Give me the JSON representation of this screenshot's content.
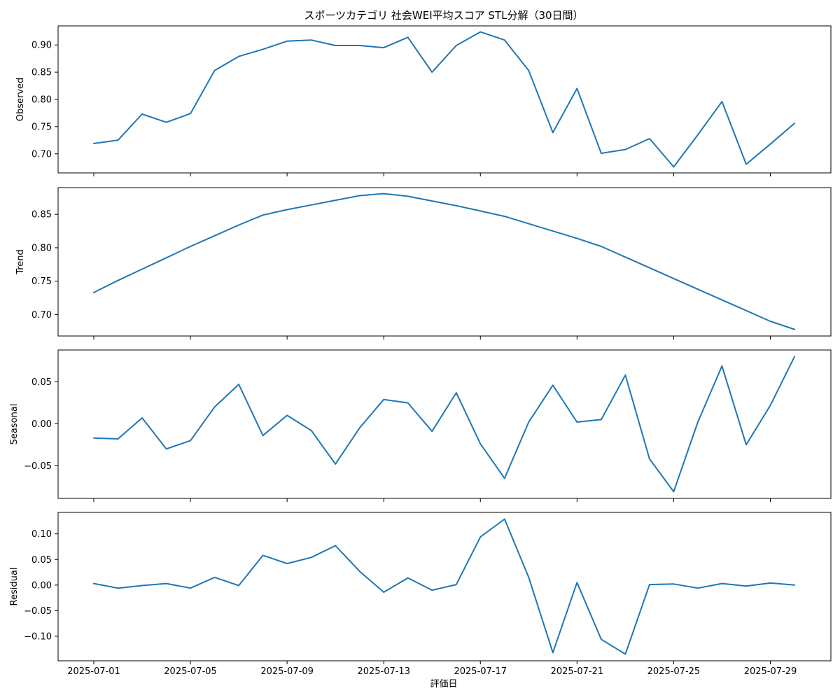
{
  "title": "スポーツカテゴリ 社会WEI平均スコア STL分解（30日間）",
  "xlabel": "評価日",
  "line_color": "#1f77b4",
  "chart_data": {
    "type": "line",
    "title": "スポーツカテゴリ 社会WEI平均スコア STL分解（30日間）",
    "xlabel": "評価日",
    "x": [
      "2025-07-01",
      "2025-07-02",
      "2025-07-03",
      "2025-07-04",
      "2025-07-05",
      "2025-07-06",
      "2025-07-07",
      "2025-07-08",
      "2025-07-09",
      "2025-07-10",
      "2025-07-11",
      "2025-07-12",
      "2025-07-13",
      "2025-07-14",
      "2025-07-15",
      "2025-07-16",
      "2025-07-17",
      "2025-07-18",
      "2025-07-19",
      "2025-07-20",
      "2025-07-21",
      "2025-07-22",
      "2025-07-23",
      "2025-07-24",
      "2025-07-25",
      "2025-07-26",
      "2025-07-27",
      "2025-07-28",
      "2025-07-29",
      "2025-07-30"
    ],
    "xticks": [
      "2025-07-01",
      "2025-07-05",
      "2025-07-09",
      "2025-07-13",
      "2025-07-17",
      "2025-07-21",
      "2025-07-25",
      "2025-07-29"
    ],
    "panels": [
      {
        "name": "observed",
        "ylabel": "Observed",
        "ylim": [
          0.665,
          0.935
        ],
        "yticks": [
          0.7,
          0.75,
          0.8,
          0.85,
          0.9
        ],
        "ytick_labels": [
          "0.70",
          "0.75",
          "0.80",
          "0.85",
          "0.90"
        ],
        "values": [
          0.719,
          0.725,
          0.773,
          0.758,
          0.774,
          0.853,
          0.879,
          0.892,
          0.907,
          0.909,
          0.899,
          0.899,
          0.895,
          0.914,
          0.85,
          0.899,
          0.924,
          0.909,
          0.853,
          0.739,
          0.82,
          0.701,
          0.708,
          0.728,
          0.676,
          0.735,
          0.796,
          0.681,
          0.718,
          0.756
        ]
      },
      {
        "name": "trend",
        "ylabel": "Trend",
        "ylim": [
          0.668,
          0.89
        ],
        "yticks": [
          0.7,
          0.75,
          0.8,
          0.85
        ],
        "ytick_labels": [
          "0.70",
          "0.75",
          "0.80",
          "0.85"
        ],
        "values": [
          0.733,
          0.751,
          0.768,
          0.785,
          0.802,
          0.818,
          0.834,
          0.849,
          0.857,
          0.864,
          0.871,
          0.878,
          0.881,
          0.877,
          0.87,
          0.863,
          0.855,
          0.847,
          0.836,
          0.825,
          0.814,
          0.802,
          0.786,
          0.77,
          0.754,
          0.738,
          0.722,
          0.706,
          0.69,
          0.678
        ]
      },
      {
        "name": "seasonal",
        "ylabel": "Seasonal",
        "ylim": [
          -0.089,
          0.088
        ],
        "yticks": [
          -0.05,
          0.0,
          0.05
        ],
        "ytick_labels": [
          "−0.05",
          "0.00",
          "0.05"
        ],
        "values": [
          -0.017,
          -0.018,
          0.007,
          -0.03,
          -0.02,
          0.02,
          0.047,
          -0.014,
          0.01,
          -0.008,
          -0.048,
          -0.005,
          0.029,
          0.025,
          -0.009,
          0.037,
          -0.024,
          -0.065,
          0.002,
          0.046,
          0.002,
          0.005,
          0.058,
          -0.042,
          -0.081,
          0.002,
          0.069,
          -0.025,
          0.022,
          0.08
        ]
      },
      {
        "name": "residual",
        "ylabel": "Residual",
        "ylim": [
          -0.148,
          0.142
        ],
        "yticks": [
          -0.1,
          -0.05,
          0.0,
          0.05,
          0.1
        ],
        "ytick_labels": [
          "−0.10",
          "−0.05",
          "0.00",
          "0.05",
          "0.10"
        ],
        "values": [
          0.003,
          -0.006,
          -0.001,
          0.003,
          -0.006,
          0.015,
          -0.001,
          0.058,
          0.042,
          0.054,
          0.077,
          0.027,
          -0.014,
          0.014,
          -0.01,
          0.001,
          0.094,
          0.129,
          0.015,
          -0.132,
          0.005,
          -0.106,
          -0.135,
          0.001,
          0.002,
          -0.006,
          0.003,
          -0.002,
          0.004,
          0.0
        ]
      }
    ]
  }
}
